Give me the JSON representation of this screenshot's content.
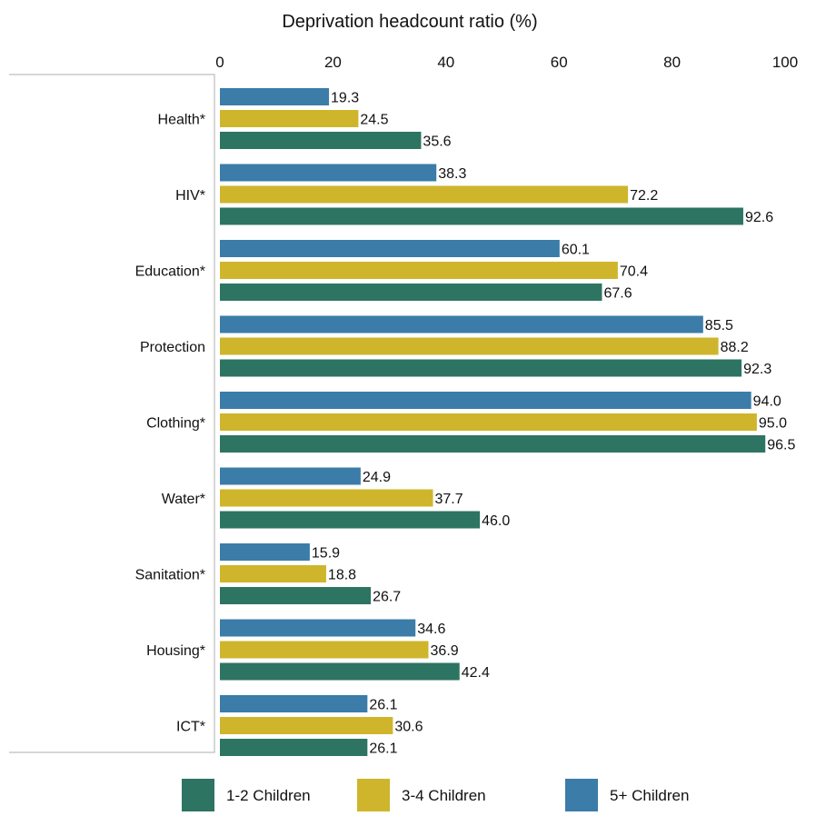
{
  "chart_data": {
    "type": "bar",
    "orientation": "horizontal",
    "title": "Deprivation headcount ratio (%)",
    "xlabel": "",
    "ylabel": "",
    "xlim": [
      0,
      100
    ],
    "x_ticks": [
      "0",
      "20",
      "40",
      "60",
      "80",
      "100"
    ],
    "x_tick_values": [
      0,
      20,
      40,
      60,
      80,
      100
    ],
    "x_axis_position": "top",
    "grid": false,
    "legend_position": "bottom",
    "categories": [
      "Health*",
      "HIV*",
      "Education*",
      "Protection",
      "Clothing*",
      "Water*",
      "Sanitation*",
      "Housing*",
      "ICT*"
    ],
    "series": [
      {
        "name": "5+ Children",
        "color": "#3b7ca8",
        "values": [
          19.3,
          38.3,
          60.1,
          85.5,
          94.0,
          24.9,
          15.9,
          34.6,
          26.1
        ],
        "labels": [
          "19.3",
          "38.3",
          "60.1",
          "85.5",
          "94.0",
          "24.9",
          "15.9",
          "34.6",
          "26.1"
        ]
      },
      {
        "name": "3-4 Children",
        "color": "#cfb52b",
        "values": [
          24.5,
          72.2,
          70.4,
          88.2,
          95.0,
          37.7,
          18.8,
          36.9,
          30.6
        ],
        "labels": [
          "24.5",
          "72.2",
          "70.4",
          "88.2",
          "95.0",
          "37.7",
          "18.8",
          "36.9",
          "30.6"
        ]
      },
      {
        "name": "1-2 Children",
        "color": "#2e7462",
        "values": [
          35.6,
          92.6,
          67.6,
          92.3,
          96.5,
          46.0,
          26.7,
          42.4,
          26.1
        ],
        "labels": [
          "35.6",
          "92.6",
          "67.6",
          "92.3",
          "96.5",
          "46.0",
          "26.7",
          "42.4",
          "26.1"
        ]
      }
    ],
    "legend": [
      {
        "name": "1-2 Children",
        "color": "#2e7462"
      },
      {
        "name": "3-4 Children",
        "color": "#cfb52b"
      },
      {
        "name": "5+ Children",
        "color": "#3b7ca8"
      }
    ]
  }
}
